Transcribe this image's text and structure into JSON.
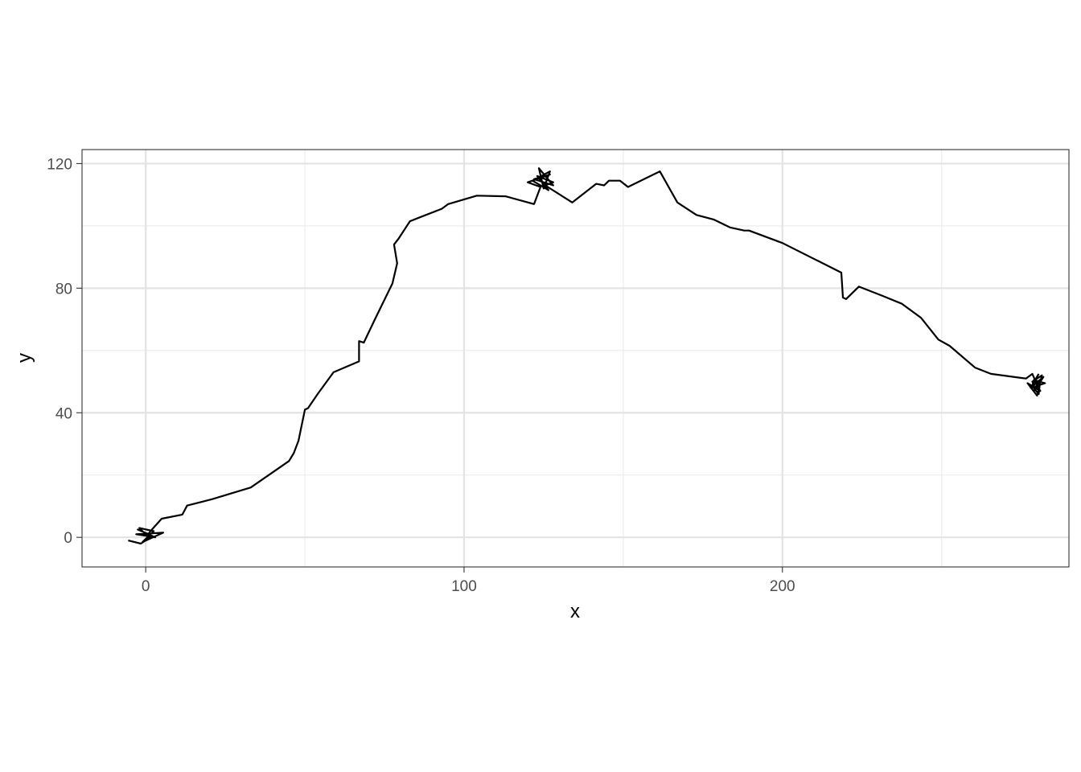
{
  "chart_data": {
    "type": "line",
    "title": "",
    "xlabel": "x",
    "ylabel": "y",
    "xlim": [
      -20,
      290
    ],
    "ylim": [
      -9.5,
      124.5
    ],
    "x_ticks": [
      0,
      100,
      200
    ],
    "x_tick_labels": [
      "0",
      "100",
      "200"
    ],
    "y_ticks": [
      0,
      40,
      80,
      120
    ],
    "y_tick_labels": [
      "0",
      "40",
      "80",
      "120"
    ],
    "grid": true,
    "theme": "bw",
    "line_color": "#000000",
    "series": [
      {
        "x": [
          -5.5,
          -1.5,
          2.0,
          -2.5,
          3.0,
          -3.0,
          5.5,
          -1.0,
          2.5,
          -2.0,
          0.5,
          1.5,
          5.0,
          11.5,
          13.0,
          21.0,
          33.0,
          45.0,
          46.5,
          48.0,
          50.0,
          51.0,
          54.0,
          59.0,
          67.0,
          67.0,
          68.5,
          72.0,
          77.5,
          79.0,
          78.0,
          79.5,
          83.0,
          85.5,
          93.0,
          95.0,
          104.0,
          113.0,
          122.0,
          124.0,
          120.0,
          127.0,
          122.0,
          128.0,
          123.5,
          125.0,
          127.0,
          121.5,
          126.5,
          123.0,
          128.0,
          125.5,
          134.0,
          141.5,
          144.0,
          145.5,
          149.0,
          151.5,
          161.5,
          167.0,
          173.0,
          178.5,
          183.5,
          188.0,
          189.5,
          200.0,
          218.5,
          219.0,
          220.0,
          224.0,
          231.5,
          237.5,
          243.5,
          249.0,
          252.5,
          260.5,
          265.5,
          276.5,
          278.5,
          280.0,
          279.0,
          281.0,
          280.5,
          278.5,
          282.0,
          279.5,
          278.5,
          281.5,
          280.0,
          277.0,
          281.0,
          279.0,
          282.5,
          278.0,
          280.5
        ],
        "y": [
          -1.0,
          -2.0,
          0.5,
          2.5,
          0.0,
          1.0,
          1.5,
          -1.5,
          2.0,
          3.0,
          0.5,
          2.0,
          6.0,
          7.3,
          10.2,
          12.3,
          16.0,
          24.5,
          27.0,
          31.0,
          41.0,
          41.5,
          46.0,
          53.0,
          56.5,
          63.0,
          62.5,
          70.0,
          81.5,
          88.0,
          94.0,
          96.0,
          101.5,
          102.5,
          105.5,
          107.0,
          109.7,
          109.5,
          107.0,
          112.5,
          114.0,
          116.5,
          115.0,
          113.0,
          118.5,
          112.0,
          117.5,
          114.5,
          111.5,
          116.0,
          114.0,
          113.0,
          107.5,
          113.5,
          113.0,
          114.5,
          114.5,
          112.5,
          117.5,
          107.5,
          103.5,
          102.0,
          99.5,
          98.5,
          98.5,
          94.5,
          85.0,
          77.0,
          76.5,
          80.5,
          77.5,
          75.0,
          70.5,
          63.5,
          61.5,
          54.5,
          52.5,
          51.0,
          52.5,
          49.0,
          47.0,
          50.5,
          46.0,
          48.5,
          51.5,
          47.5,
          50.0,
          52.0,
          45.5,
          49.5,
          47.0,
          50.5,
          49.5,
          48.0,
          52.5
        ]
      }
    ]
  }
}
